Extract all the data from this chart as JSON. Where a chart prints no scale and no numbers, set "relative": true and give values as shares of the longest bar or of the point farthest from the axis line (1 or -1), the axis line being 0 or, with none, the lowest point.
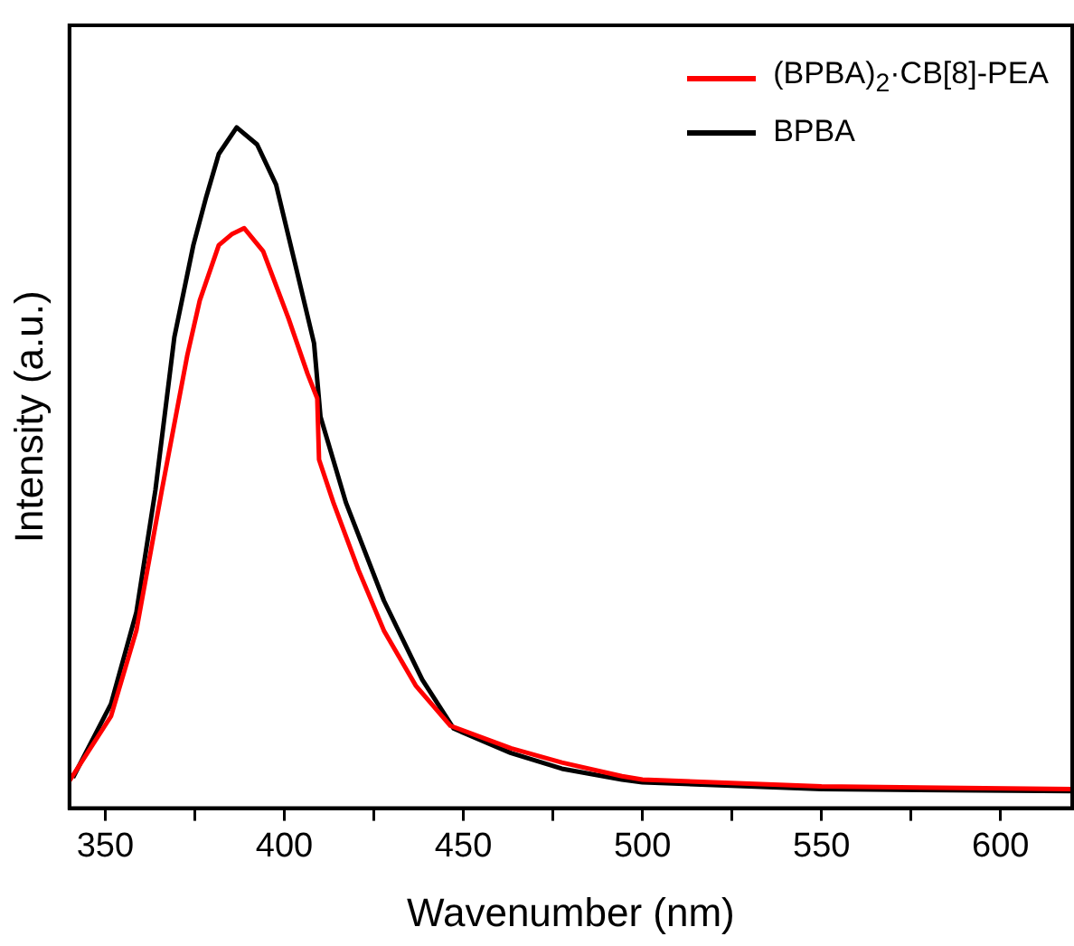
{
  "chart_data": {
    "type": "line",
    "xlabel": "Wavenumber (nm)",
    "ylabel": "Intensity (a.u.)",
    "relative": true,
    "legend": "top right",
    "tick_labels": "x",
    "grid": false,
    "marker": "none",
    "line_style": "solid",
    "xlim": [
      340,
      620
    ],
    "xticks": [
      350,
      {
        "value": 375,
        "label": null
      },
      400,
      {
        "value": 425,
        "label": null
      },
      450,
      {
        "value": 475,
        "label": null
      },
      500,
      {
        "value": 525,
        "label": null
      },
      550,
      {
        "value": 575,
        "label": null
      },
      600
    ],
    "series": [
      {
        "name": "(BPBA)$_{2}$·CB[8]-PEA",
        "color": "#ff0000",
        "x": [
          340,
          351.6,
          358.7,
          365.8,
          372.9,
          376.4,
          381.7,
          385.3,
          388.8,
          394.1,
          401.2,
          406.5,
          409.2,
          409.7,
          413.7,
          420.7,
          427.8,
          436.7,
          446.4,
          463.3,
          477.5,
          494.3,
          500,
          550,
          620
        ],
        "values": [
          0.04,
          0.135,
          0.261,
          0.467,
          0.665,
          0.746,
          0.827,
          0.843,
          0.852,
          0.818,
          0.719,
          0.638,
          0.602,
          0.512,
          0.449,
          0.35,
          0.261,
          0.18,
          0.121,
          0.088,
          0.067,
          0.047,
          0.042,
          0.032,
          0.028
        ]
      },
      {
        "name": "BPBA",
        "color": "#000000",
        "x": [
          341,
          351.6,
          358.7,
          364,
          369.3,
          374.6,
          378.2,
          381.7,
          386.7,
          392.4,
          397.7,
          403,
          408.3,
          410.1,
          417.2,
          427.8,
          438.5,
          447.3,
          463.3,
          477.5,
          494.3,
          500,
          550,
          620
        ],
        "values": [
          0.045,
          0.153,
          0.288,
          0.467,
          0.692,
          0.827,
          0.898,
          0.961,
          1,
          0.975,
          0.916,
          0.8,
          0.683,
          0.575,
          0.449,
          0.305,
          0.189,
          0.117,
          0.081,
          0.058,
          0.042,
          0.038,
          0.028,
          0.025
        ]
      }
    ]
  }
}
